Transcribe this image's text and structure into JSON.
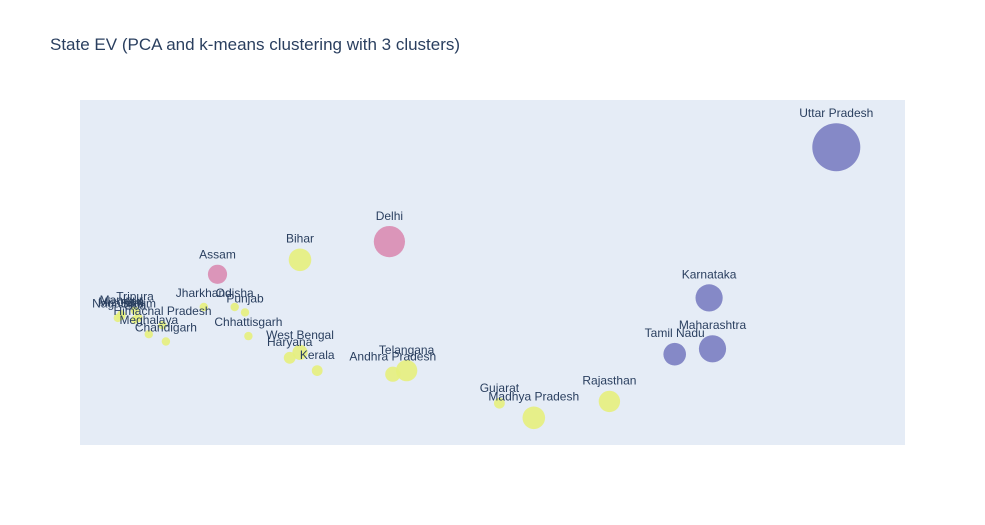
{
  "chart_data": {
    "type": "scatter",
    "title": "State EV (PCA and k-means clustering with 3 clusters)",
    "xlabel": "",
    "ylabel": "",
    "xlim": [
      -3.5,
      8.5
    ],
    "ylim": [
      -3.0,
      6.5
    ],
    "grid": false,
    "legend": "none",
    "cluster_colors": {
      "0": "#7a7ec2",
      "1": "#e6ef7d",
      "2": "#d98cb3"
    },
    "points": [
      {
        "label": "Uttar Pradesh",
        "x": 7.5,
        "y": 5.2,
        "size": 1.0,
        "cluster": 0
      },
      {
        "label": "Delhi",
        "x": 1.0,
        "y": 2.6,
        "size": 0.42,
        "cluster": 2
      },
      {
        "label": "Assam",
        "x": -1.5,
        "y": 1.7,
        "size": 0.16,
        "cluster": 2
      },
      {
        "label": "Bihar",
        "x": -0.3,
        "y": 2.1,
        "size": 0.22,
        "cluster": 1
      },
      {
        "label": "Karnataka",
        "x": 5.65,
        "y": 1.05,
        "size": 0.32,
        "cluster": 0
      },
      {
        "label": "Maharashtra",
        "x": 5.7,
        "y": -0.35,
        "size": 0.32,
        "cluster": 0
      },
      {
        "label": "Tamil Nadu",
        "x": 5.15,
        "y": -0.5,
        "size": 0.22,
        "cluster": 0
      },
      {
        "label": "Rajasthan",
        "x": 4.2,
        "y": -1.8,
        "size": 0.2,
        "cluster": 1
      },
      {
        "label": "Madhya Pradesh",
        "x": 3.1,
        "y": -2.25,
        "size": 0.22,
        "cluster": 1
      },
      {
        "label": "Gujarat",
        "x": 2.6,
        "y": -1.85,
        "size": 0.05,
        "cluster": 1
      },
      {
        "label": "Telangana",
        "x": 1.25,
        "y": -0.95,
        "size": 0.2,
        "cluster": 1
      },
      {
        "label": "Andhra Pradesh",
        "x": 1.05,
        "y": -1.05,
        "size": 0.1,
        "cluster": 1
      },
      {
        "label": "Kerala",
        "x": -0.05,
        "y": -0.95,
        "size": 0.05,
        "cluster": 1
      },
      {
        "label": "West Bengal",
        "x": -0.3,
        "y": -0.45,
        "size": 0.1,
        "cluster": 1
      },
      {
        "label": "Haryana",
        "x": -0.45,
        "y": -0.6,
        "size": 0.06,
        "cluster": 1
      },
      {
        "label": "Chhattisgarh",
        "x": -1.05,
        "y": 0.0,
        "size": 0.03,
        "cluster": 1
      },
      {
        "label": "Odisha",
        "x": -1.25,
        "y": 0.8,
        "size": 0.03,
        "cluster": 1
      },
      {
        "label": "Punjab",
        "x": -1.1,
        "y": 0.65,
        "size": 0.03,
        "cluster": 1
      },
      {
        "label": "Jharkhand",
        "x": -1.7,
        "y": 0.8,
        "size": 0.03,
        "cluster": 1
      },
      {
        "label": "Tripura",
        "x": -2.7,
        "y": 0.7,
        "size": 0.03,
        "cluster": 1
      },
      {
        "label": "Manipur",
        "x": -2.9,
        "y": 0.6,
        "size": 0.03,
        "cluster": 1
      },
      {
        "label": "Mizoram",
        "x": -2.9,
        "y": 0.55,
        "size": 0.03,
        "cluster": 1
      },
      {
        "label": "Nagaland",
        "x": -2.95,
        "y": 0.5,
        "size": 0.03,
        "cluster": 1
      },
      {
        "label": "Goa",
        "x": -2.7,
        "y": 0.45,
        "size": 0.03,
        "cluster": 1
      },
      {
        "label": "Sikkim",
        "x": -2.65,
        "y": 0.5,
        "size": 0.03,
        "cluster": 1
      },
      {
        "label": "Himachal Pradesh",
        "x": -2.3,
        "y": 0.3,
        "size": 0.03,
        "cluster": 1
      },
      {
        "label": "Meghalaya",
        "x": -2.5,
        "y": 0.05,
        "size": 0.03,
        "cluster": 1
      },
      {
        "label": "Chandigarh",
        "x": -2.25,
        "y": -0.15,
        "size": 0.03,
        "cluster": 1
      }
    ]
  }
}
